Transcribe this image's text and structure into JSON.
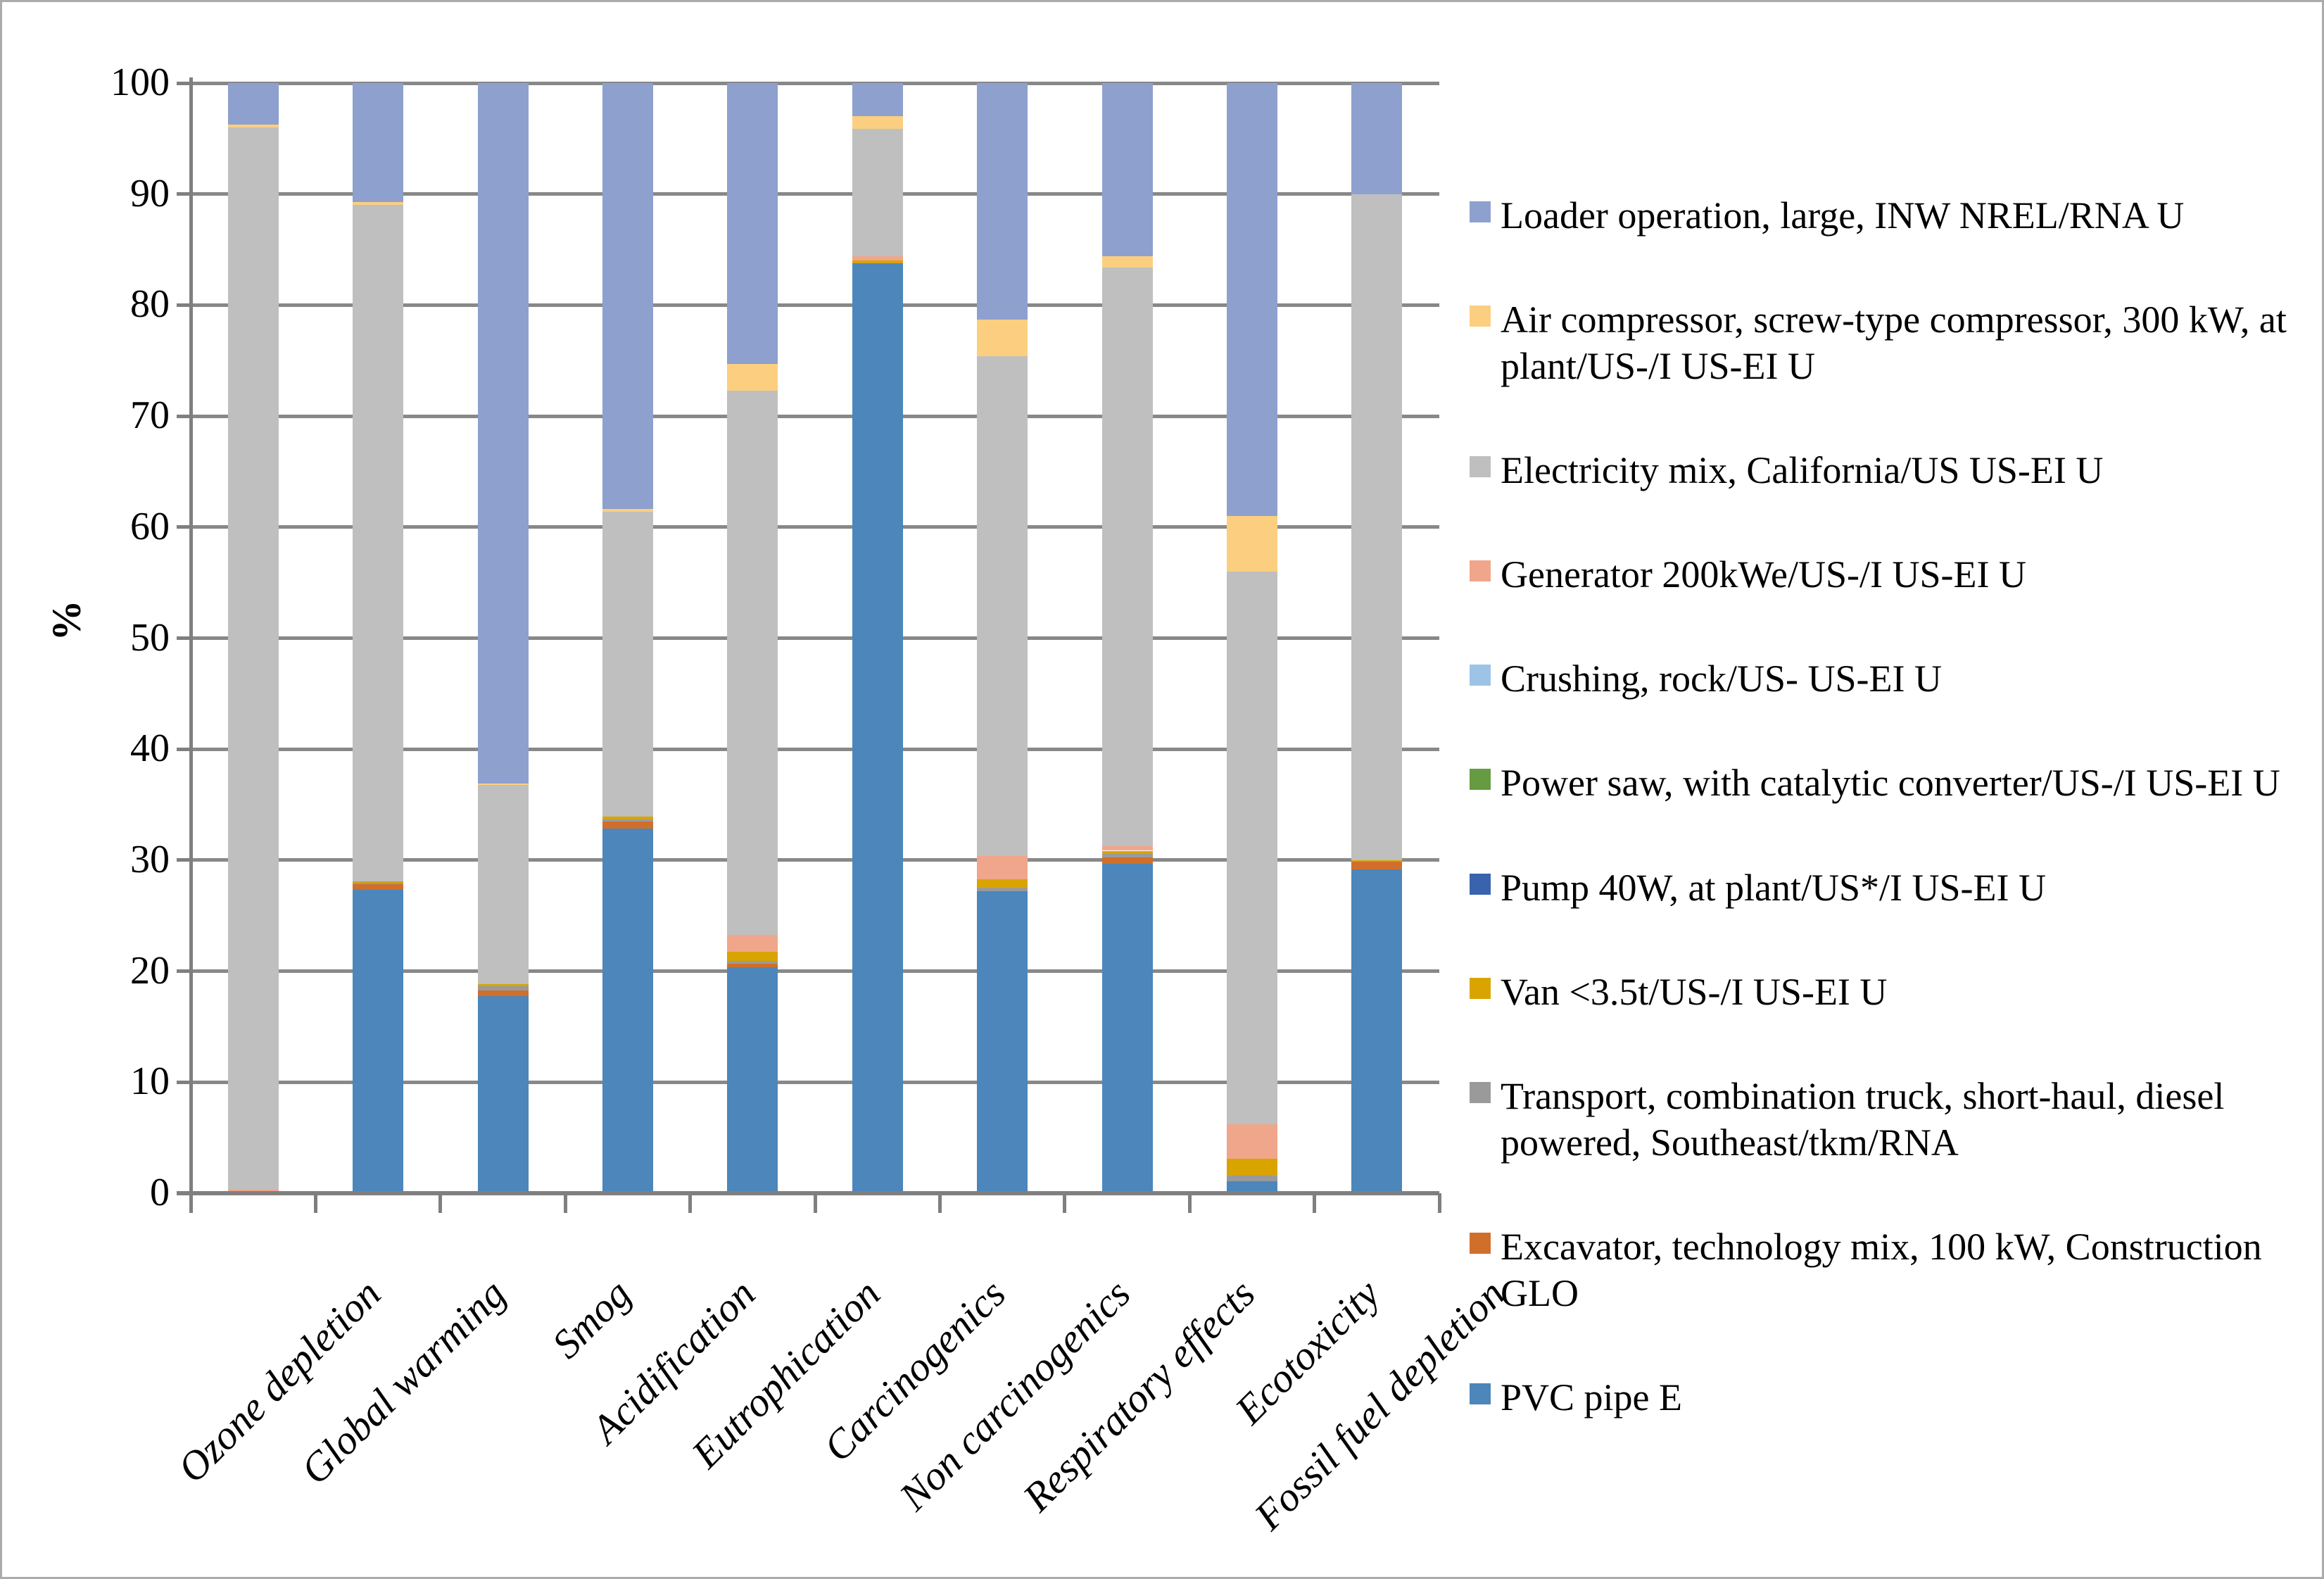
{
  "chart_data": {
    "type": "bar",
    "subtype": "stacked-100-percent",
    "title": "",
    "xlabel": "",
    "ylabel": "%",
    "ylim": [
      0,
      100
    ],
    "y_ticks": [
      0,
      10,
      20,
      30,
      40,
      50,
      60,
      70,
      80,
      90,
      100
    ],
    "grid": true,
    "legend_position": "right",
    "categories": [
      "Ozone depletion",
      "Global warming",
      "Smog",
      "Acidification",
      "Eutrophication",
      "Carcinogenics",
      "Non carcinogenics",
      "Respiratory effects",
      "Ecotoxicity",
      "Fossil fuel depletion"
    ],
    "stack_order_note": "series listed bottom-to-top of stack; legend shows reverse order",
    "series": [
      {
        "name": "PVC pipe E",
        "color": "#4C86BB",
        "values": [
          0,
          27.3,
          17.75,
          32.85,
          20.35,
          83.75,
          27.2,
          29.65,
          1.05,
          29.15
        ]
      },
      {
        "name": "Excavator, technology mix, 100 kW, Construction GLO",
        "color": "#D06F2B",
        "values": [
          0,
          0.55,
          0.5,
          0.65,
          0.3,
          0,
          0,
          0.6,
          0,
          0.7
        ]
      },
      {
        "name": "Transport, combination truck, short-haul, diesel powered, Southeast/tkm/RNA",
        "color": "#9A9A9A",
        "values": [
          0,
          0.1,
          0.4,
          0.15,
          0.3,
          0,
          0.3,
          0.3,
          0.55,
          0
        ]
      },
      {
        "name": "Van <3.5t/US-/I US-EI U",
        "color": "#D9A400",
        "values": [
          0,
          0.15,
          0.2,
          0.25,
          0.8,
          0.3,
          0.8,
          0.3,
          1.5,
          0.15
        ]
      },
      {
        "name": "Pump 40W, at plant/US*/I US-EI U",
        "color": "#3A63AD",
        "values": [
          0,
          0,
          0,
          0,
          0,
          0,
          0,
          0,
          0,
          0
        ]
      },
      {
        "name": "Power saw, with catalytic converter/US-/I US-EI U",
        "color": "#669B41",
        "values": [
          0,
          0,
          0,
          0,
          0,
          0,
          0,
          0,
          0,
          0
        ]
      },
      {
        "name": "Crushing, rock/US- US-EI U",
        "color": "#9DC3E6",
        "values": [
          0,
          0,
          0,
          0,
          0,
          0,
          0,
          0,
          0,
          0
        ]
      },
      {
        "name": "Generator 200kWe/US-/I US-EI U",
        "color": "#F0A68A",
        "values": [
          0.3,
          0,
          0,
          0,
          1.5,
          0.35,
          2.1,
          0.4,
          3.1,
          0
        ]
      },
      {
        "name": "Electricity mix, California/US US-EI U",
        "color": "#BFBFBF",
        "values": [
          95.7,
          60.9,
          17.9,
          27.5,
          49.05,
          11.5,
          45.0,
          52.15,
          49.8,
          60.0
        ]
      },
      {
        "name": "Air compressor, screw-type compressor, 300 kW, at plant/US-/I US-EI U",
        "color": "#FBCF7F",
        "values": [
          0.25,
          0.3,
          0.15,
          0.25,
          2.4,
          1.1,
          3.3,
          1.0,
          5.0,
          0
        ]
      },
      {
        "name": "Loader operation, large, INW NREL/RNA U",
        "color": "#8EA0CE",
        "values": [
          3.75,
          10.7,
          63.1,
          38.35,
          25.3,
          3.0,
          21.3,
          15.6,
          39.0,
          10.0
        ]
      }
    ]
  }
}
